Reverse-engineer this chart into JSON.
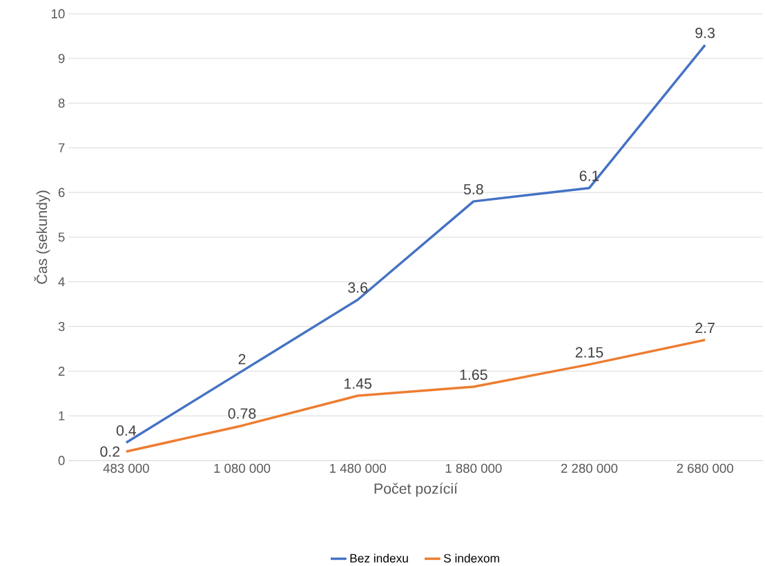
{
  "chart_data": {
    "type": "line",
    "xlabel": "Počet pozícií",
    "ylabel": "Čas (sekundy)",
    "categories": [
      "483 000",
      "1 080 000",
      "1 480 000",
      "1 880 000",
      "2 280 000",
      "2 680 000"
    ],
    "series": [
      {
        "name": "Bez indexu",
        "color": "#4472c4",
        "values": [
          0.4,
          2,
          3.6,
          5.8,
          6.1,
          9.3
        ]
      },
      {
        "name": "S indexom",
        "color": "#ed7d31",
        "values": [
          0.2,
          0.78,
          1.45,
          1.65,
          2.15,
          2.7
        ]
      }
    ],
    "ylim": [
      0,
      10
    ],
    "yticks": [
      0,
      1,
      2,
      3,
      4,
      5,
      6,
      7,
      8,
      9,
      10
    ],
    "grid": "y",
    "legend": "bottom",
    "marker": "none",
    "data_labels": true
  }
}
